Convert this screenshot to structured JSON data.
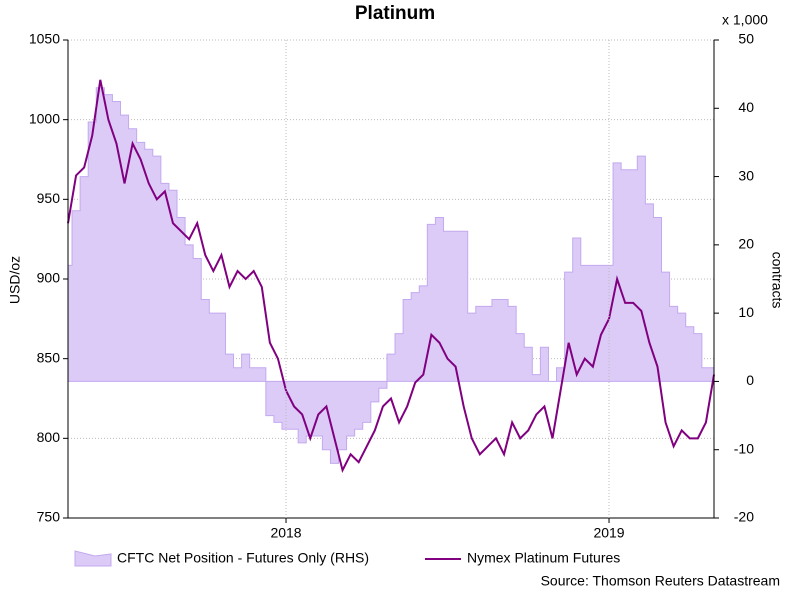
{
  "chart_data": {
    "type": "combo",
    "title": "Platinum",
    "y_label": "USD/oz",
    "y2_label": "contracts",
    "y2_unit": "x 1,000",
    "source": "Source: Thomson Reuters Datastream",
    "categories": [
      null,
      null,
      null,
      null,
      null,
      null,
      null,
      null,
      null,
      null,
      null,
      null,
      null,
      null,
      null,
      null,
      null,
      null,
      null,
      null,
      null,
      null,
      null,
      null,
      null,
      null,
      null,
      "2018",
      null,
      null,
      null,
      null,
      null,
      null,
      null,
      null,
      null,
      null,
      null,
      null,
      null,
      null,
      null,
      null,
      null,
      null,
      null,
      null,
      null,
      null,
      null,
      null,
      null,
      null,
      null,
      null,
      null,
      null,
      null,
      null,
      null,
      null,
      null,
      null,
      null,
      null,
      null,
      "2019",
      null,
      null,
      null,
      null,
      null,
      null,
      null,
      null,
      null,
      null,
      null,
      null,
      null
    ],
    "series": [
      {
        "name": "CFTC Net Position - Futures Only (RHS)",
        "type": "area",
        "axis": "y2",
        "color": "#dccbf7",
        "values": [
          17,
          25,
          30,
          38,
          43,
          42,
          41,
          39,
          37,
          35,
          34,
          33,
          29,
          28,
          24,
          20,
          18,
          12,
          10,
          10,
          4,
          2,
          4,
          2,
          2,
          -5,
          -6,
          -7,
          -7,
          -9,
          -8,
          -8,
          -10,
          -12,
          -10,
          -8,
          -7,
          -6,
          -3,
          -1,
          4,
          7,
          12,
          13,
          14,
          23,
          24,
          22,
          22,
          22,
          10,
          11,
          11,
          12,
          12,
          11,
          7,
          5,
          1,
          5,
          0,
          2,
          16,
          21,
          17,
          17,
          17,
          17,
          32,
          31,
          31,
          33,
          26,
          24,
          16,
          11,
          10,
          8,
          7,
          2,
          2
        ]
      },
      {
        "name": "Nymex Platinum Futures",
        "type": "line",
        "axis": "y",
        "color": "#800080",
        "values": [
          935,
          965,
          970,
          990,
          1025,
          1000,
          985,
          960,
          985,
          975,
          960,
          950,
          955,
          935,
          930,
          925,
          935,
          915,
          905,
          915,
          895,
          905,
          900,
          905,
          895,
          860,
          850,
          830,
          820,
          815,
          800,
          815,
          820,
          800,
          780,
          790,
          785,
          795,
          805,
          820,
          825,
          810,
          820,
          835,
          840,
          865,
          860,
          850,
          845,
          820,
          800,
          790,
          795,
          800,
          790,
          810,
          800,
          805,
          815,
          820,
          800,
          830,
          860,
          840,
          850,
          845,
          865,
          875,
          900,
          885,
          885,
          880,
          860,
          845,
          810,
          795,
          805,
          800,
          800,
          810,
          840
        ]
      }
    ],
    "ylim": [
      750,
      1050
    ],
    "yticks": [
      750,
      800,
      850,
      900,
      950,
      1000,
      1050
    ],
    "y2lim": [
      -20,
      50
    ],
    "y2ticks": [
      -20,
      -10,
      0,
      10,
      20,
      30,
      40,
      50
    ],
    "grid": true
  }
}
